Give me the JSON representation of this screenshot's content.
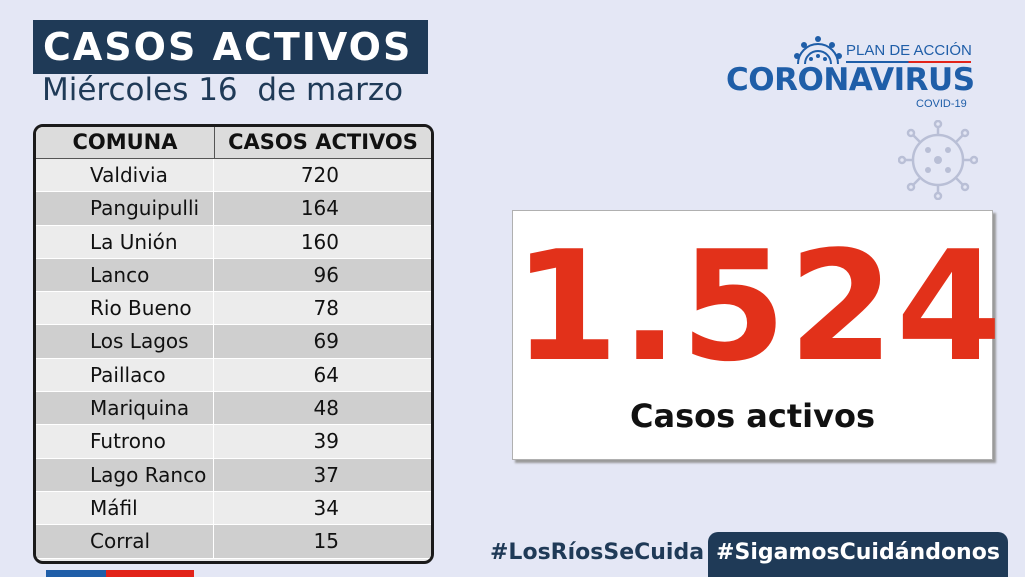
{
  "header": {
    "title": "CASOS ACTIVOS",
    "date": "Miércoles 16  de marzo"
  },
  "table": {
    "columns": [
      "COMUNA",
      "CASOS ACTIVOS"
    ],
    "rows": [
      {
        "comuna": "Valdivia",
        "casos": "720"
      },
      {
        "comuna": "Panguipulli",
        "casos": "164"
      },
      {
        "comuna": "La Unión",
        "casos": "160"
      },
      {
        "comuna": "Lanco",
        "casos": "96"
      },
      {
        "comuna": "Rio Bueno",
        "casos": "78"
      },
      {
        "comuna": "Los Lagos",
        "casos": "69"
      },
      {
        "comuna": "Paillaco",
        "casos": "64"
      },
      {
        "comuna": "Mariquina",
        "casos": "48"
      },
      {
        "comuna": "Futrono",
        "casos": "39"
      },
      {
        "comuna": "Lago Ranco",
        "casos": "37"
      },
      {
        "comuna": "Máfil",
        "casos": "34"
      },
      {
        "comuna": "Corral",
        "casos": "15"
      }
    ]
  },
  "logo": {
    "plan": "PLAN DE ACCIÓN",
    "name": "CORONAVIRUS",
    "sub": "COVID-19",
    "icon": "virus-icon"
  },
  "stat": {
    "value": "1.524",
    "label": "Casos activos"
  },
  "footer": {
    "hashtag_1": "#LosRíosSeCuida",
    "hashtag_2": "#SigamosCuidándonos"
  },
  "colors": {
    "navy": "#1f3a57",
    "blue": "#1f5ea8",
    "red": "#e2311a",
    "background": "#e4e7f5"
  }
}
